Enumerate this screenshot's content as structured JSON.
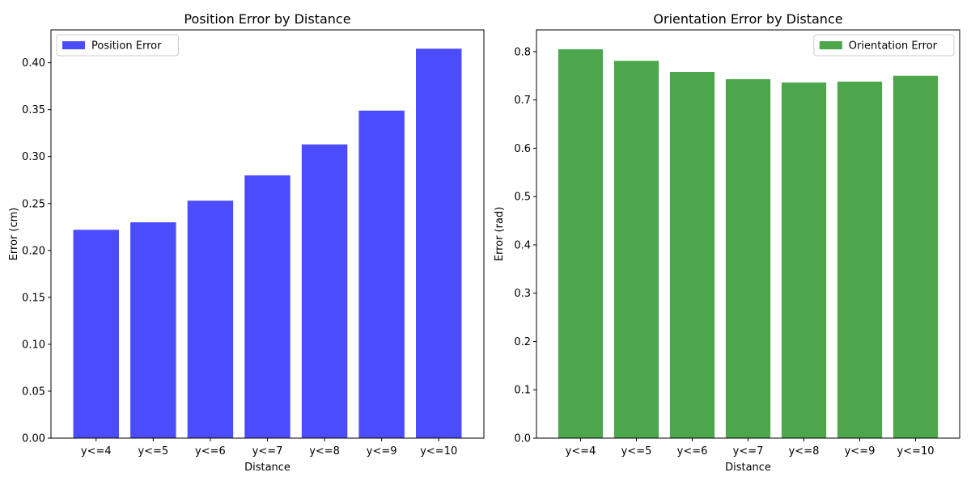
{
  "chart_data": [
    {
      "type": "bar",
      "title": "Position Error by Distance",
      "xlabel": "Distance",
      "ylabel": "Error (cm)",
      "categories": [
        "y<=4",
        "y<=5",
        "y<=6",
        "y<=7",
        "y<=8",
        "y<=9",
        "y<=10"
      ],
      "series": [
        {
          "name": "Position Error",
          "values": [
            0.222,
            0.23,
            0.253,
            0.28,
            0.313,
            0.349,
            0.415
          ],
          "color": "#4c4cff"
        }
      ],
      "ylim": [
        0,
        0.435
      ],
      "yticks": [
        "0.00",
        "0.05",
        "0.10",
        "0.15",
        "0.20",
        "0.25",
        "0.30",
        "0.35",
        "0.40"
      ],
      "ytick_values": [
        0,
        0.05,
        0.1,
        0.15,
        0.2,
        0.25,
        0.3,
        0.35,
        0.4
      ],
      "legend_position": "top-left",
      "grid": false
    },
    {
      "type": "bar",
      "title": "Orientation Error by Distance",
      "xlabel": "Distance",
      "ylabel": "Error (rad)",
      "categories": [
        "y<=4",
        "y<=5",
        "y<=6",
        "y<=7",
        "y<=8",
        "y<=9",
        "y<=10"
      ],
      "series": [
        {
          "name": "Orientation Error",
          "values": [
            0.805,
            0.781,
            0.758,
            0.743,
            0.736,
            0.738,
            0.75
          ],
          "color": "#4ca64c"
        }
      ],
      "ylim": [
        0,
        0.845
      ],
      "yticks": [
        "0.0",
        "0.1",
        "0.2",
        "0.3",
        "0.4",
        "0.5",
        "0.6",
        "0.7",
        "0.8"
      ],
      "ytick_values": [
        0,
        0.1,
        0.2,
        0.3,
        0.4,
        0.5,
        0.6,
        0.7,
        0.8
      ],
      "legend_position": "top-right",
      "grid": false
    }
  ]
}
